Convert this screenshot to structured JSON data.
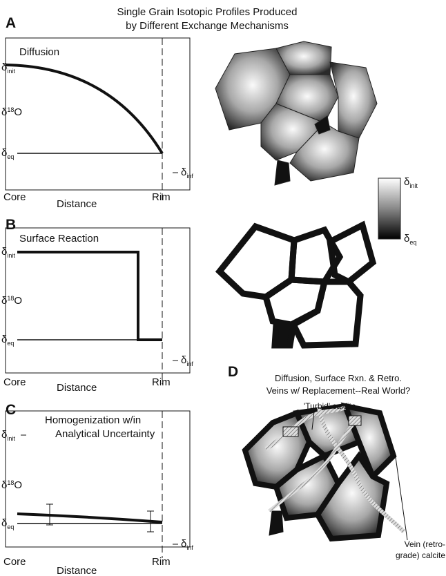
{
  "title": [
    "Single Grain Isotopic Profiles Produced",
    "by Different Exchange Mechanisms"
  ],
  "panels": [
    {
      "letter": "A",
      "label": [
        "Diffusion"
      ],
      "y_init": {
        "symbol": "δ",
        "sub": "init"
      },
      "y_axis": {
        "symbol": "δ",
        "sup": "18",
        "name": "O"
      },
      "y_eq": {
        "symbol": "δ",
        "sub": "eq"
      },
      "inf": {
        "symbol": "δ",
        "sub": "inf"
      },
      "x_core": "Core",
      "x_distance": "Distance",
      "x_rim": "Rim"
    },
    {
      "letter": "B",
      "label": [
        "Surface Reaction"
      ],
      "y_init": {
        "symbol": "δ",
        "sub": "init"
      },
      "y_axis": {
        "symbol": "δ",
        "sup": "18",
        "name": "O"
      },
      "y_eq": {
        "symbol": "δ",
        "sub": "eq"
      },
      "inf": {
        "symbol": "δ",
        "sub": "inf"
      },
      "x_core": "Core",
      "x_distance": "Distance",
      "x_rim": "Rim"
    },
    {
      "letter": "C",
      "label": [
        "Homogenization w/in",
        "Analytical Uncertainty"
      ],
      "y_init": {
        "symbol": "δ",
        "sub": "init"
      },
      "y_axis": {
        "symbol": "δ",
        "sup": "18",
        "name": "O"
      },
      "y_eq": {
        "symbol": "δ",
        "sub": "eq"
      },
      "inf": {
        "symbol": "δ",
        "sub": "inf"
      },
      "x_core": "Core",
      "x_distance": "Distance",
      "x_rim": "Rim"
    }
  ],
  "colorbar": {
    "top": {
      "symbol": "δ",
      "sub": "init"
    },
    "bottom": {
      "symbol": "δ",
      "sub": "eq"
    }
  },
  "panel_d": {
    "letter": "D",
    "title": [
      "Diffusion, Surface Rxn. & Retro.",
      "Veins w/ Replacement--Real World?"
    ],
    "turbid_label": "'Turbid' calcite",
    "vein_label": [
      "Vein (retro-",
      "grade) calcite"
    ]
  }
}
